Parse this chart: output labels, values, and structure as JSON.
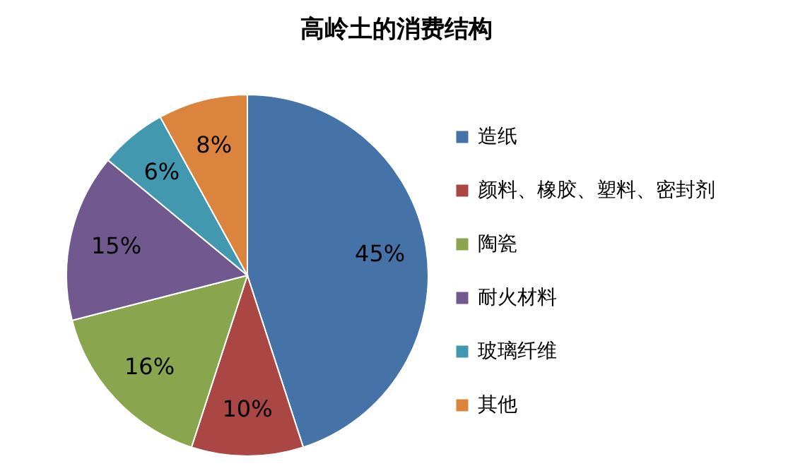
{
  "chart_data": {
    "type": "pie",
    "title": "高岭土的消费结构",
    "categories": [
      "造纸",
      "颜料、橡胶、塑料、密封剂",
      "陶瓷",
      "耐火材料",
      "玻璃纤维",
      "其他"
    ],
    "values": [
      45,
      10,
      16,
      15,
      6,
      8
    ],
    "colors": [
      "#4572a7",
      "#aa4643",
      "#89a54e",
      "#71588f",
      "#4198af",
      "#db843d"
    ],
    "value_labels": [
      "45%",
      "10%",
      "16%",
      "15%",
      "6%",
      "8%"
    ],
    "legend": "right"
  }
}
